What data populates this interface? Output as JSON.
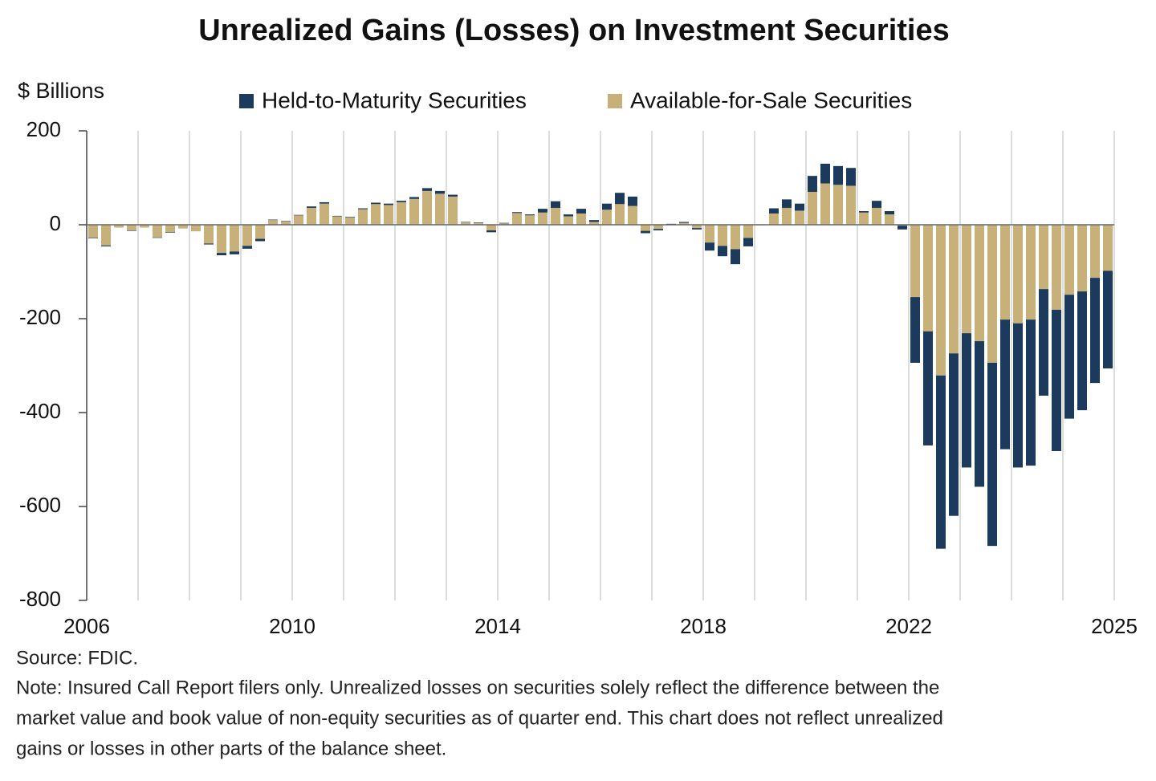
{
  "chart_data": {
    "type": "stacked-bar",
    "title": "Unrealized Gains (Losses) on Investment Securities",
    "y_label": "$ Billions",
    "source": "Source: FDIC.",
    "note": [
      "Note: Insured Call Report filers only. Unrealized losses on securities solely reflect the difference between the",
      "market value and book value of non-equity securities as of quarter end. This chart does not reflect unrealized",
      "gains or losses in other parts of the balance sheet."
    ],
    "categories": [
      "2006",
      null,
      null,
      null,
      null,
      null,
      null,
      null,
      null,
      null,
      null,
      null,
      null,
      null,
      null,
      null,
      "2010",
      null,
      null,
      null,
      null,
      null,
      null,
      null,
      null,
      null,
      null,
      null,
      null,
      null,
      null,
      null,
      "2014",
      null,
      null,
      null,
      null,
      null,
      null,
      null,
      null,
      null,
      null,
      null,
      null,
      null,
      null,
      null,
      "2018",
      null,
      null,
      null,
      null,
      null,
      null,
      null,
      null,
      null,
      null,
      null,
      null,
      null,
      null,
      null,
      "2022",
      null,
      null,
      null,
      null,
      null,
      null,
      null,
      null,
      null,
      null,
      null,
      null,
      null,
      null,
      "2025"
    ],
    "series": [
      {
        "name": "Available-for-Sale Securities",
        "color": "#c8b07a",
        "hatch": true,
        "values": [
          -28,
          -44,
          -6,
          -12,
          -6,
          -27,
          -16,
          -8,
          -14,
          -40,
          -60,
          -57,
          -45,
          -30,
          10,
          7,
          20,
          36,
          45,
          18,
          16,
          33,
          44,
          42,
          48,
          55,
          72,
          66,
          60,
          5,
          4,
          -12,
          3,
          25,
          20,
          26,
          36,
          18,
          24,
          6,
          32,
          44,
          40,
          -13,
          -9,
          1,
          4,
          -7,
          -38,
          -45,
          -52,
          -28,
          0,
          24,
          36,
          30,
          70,
          88,
          85,
          83,
          26,
          36,
          22,
          -2,
          -154,
          -227,
          -321,
          -274,
          -231,
          -248,
          -294,
          -202,
          -210,
          -202,
          -137,
          -181,
          -149,
          -142,
          -113,
          -98
        ]
      },
      {
        "name": "Held-to-Maturity Securities",
        "color": "#1b3a5c",
        "hatch": false,
        "values": [
          -1,
          -2,
          0,
          -1,
          0,
          -1,
          -1,
          0,
          0,
          -2,
          -5,
          -6,
          -6,
          -5,
          1,
          1,
          1,
          3,
          3,
          1,
          1,
          2,
          3,
          3,
          3,
          4,
          6,
          6,
          4,
          1,
          1,
          -4,
          1,
          2,
          2,
          8,
          14,
          4,
          10,
          4,
          13,
          24,
          20,
          -5,
          -3,
          1,
          2,
          -3,
          -17,
          -22,
          -32,
          -18,
          -1,
          11,
          18,
          15,
          34,
          42,
          40,
          38,
          3,
          15,
          7,
          -8,
          -140,
          -243,
          -369,
          -346,
          -286,
          -310,
          -390,
          -276,
          -307,
          -311,
          -227,
          -301,
          -264,
          -253,
          -224,
          -208
        ]
      }
    ],
    "ylim": [
      -800,
      200
    ],
    "yticks": [
      -800,
      -600,
      -400,
      -200,
      0,
      200
    ],
    "grid": true
  }
}
